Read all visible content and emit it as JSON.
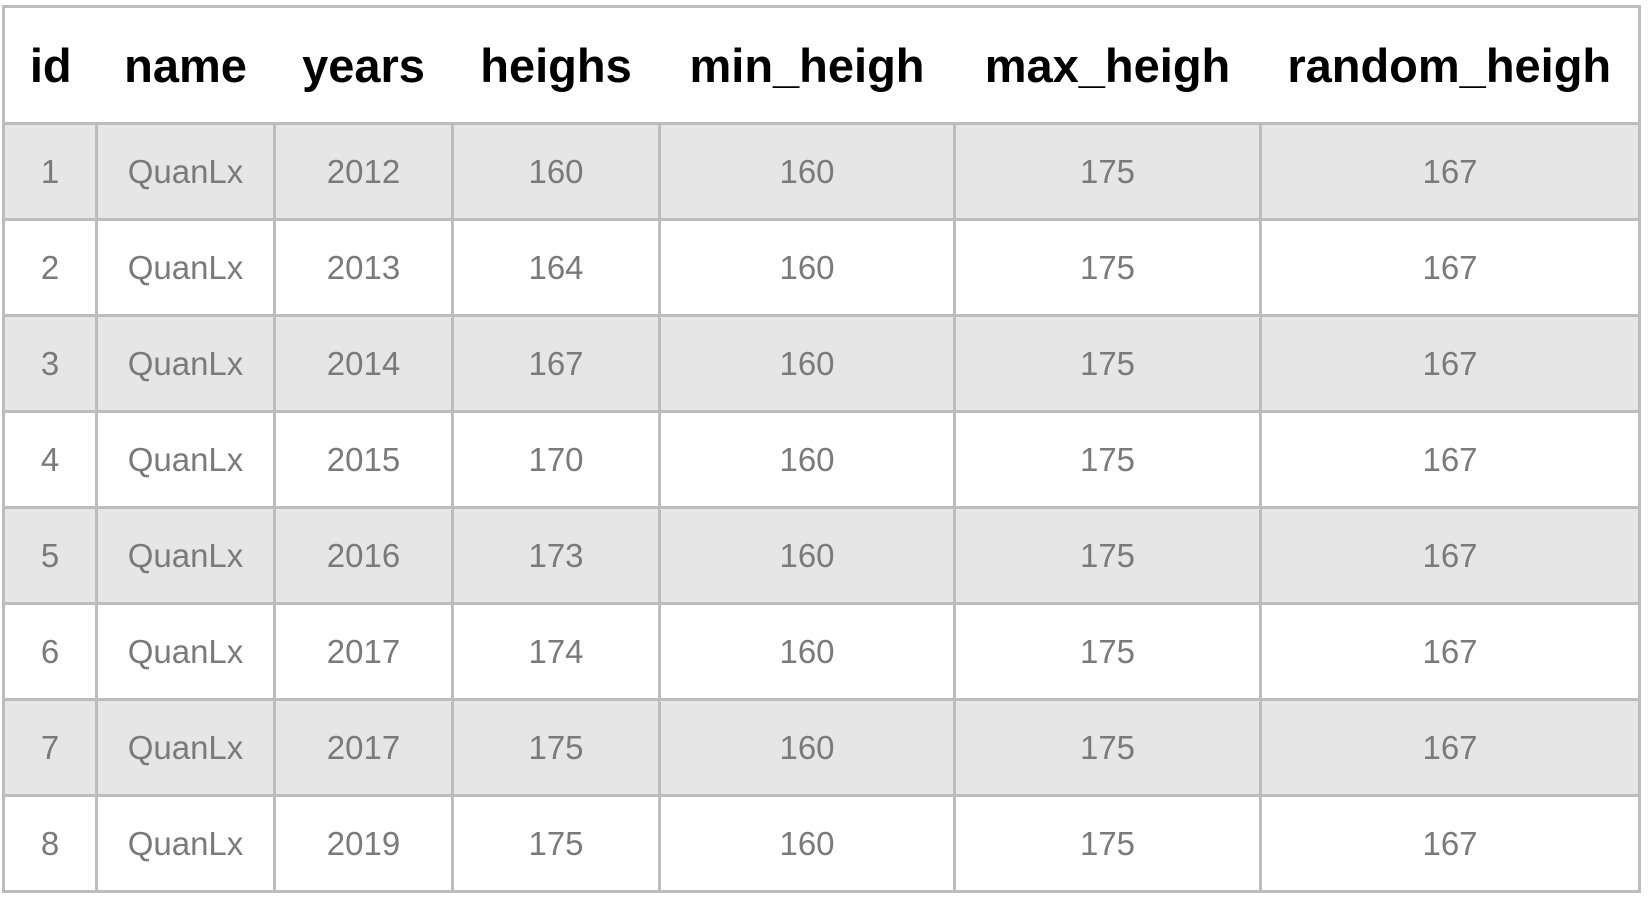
{
  "table": {
    "columns": [
      "id",
      "name",
      "years",
      "heighs",
      "min_heigh",
      "max_heigh",
      "random_heigh"
    ],
    "rows": [
      [
        "1",
        "QuanLx",
        "2012",
        "160",
        "160",
        "175",
        "167"
      ],
      [
        "2",
        "QuanLx",
        "2013",
        "164",
        "160",
        "175",
        "167"
      ],
      [
        "3",
        "QuanLx",
        "2014",
        "167",
        "160",
        "175",
        "167"
      ],
      [
        "4",
        "QuanLx",
        "2015",
        "170",
        "160",
        "175",
        "167"
      ],
      [
        "5",
        "QuanLx",
        "2016",
        "173",
        "160",
        "175",
        "167"
      ],
      [
        "6",
        "QuanLx",
        "2017",
        "174",
        "160",
        "175",
        "167"
      ],
      [
        "7",
        "QuanLx",
        "2017",
        "175",
        "160",
        "175",
        "167"
      ],
      [
        "8",
        "QuanLx",
        "2019",
        "175",
        "160",
        "175",
        "167"
      ]
    ]
  },
  "colors": {
    "odd_row": "#e6e6e6",
    "even_row": "#ffffff",
    "border": "#bdbdbd",
    "cell_text": "#7a7a7a",
    "header_text": "#000000"
  }
}
